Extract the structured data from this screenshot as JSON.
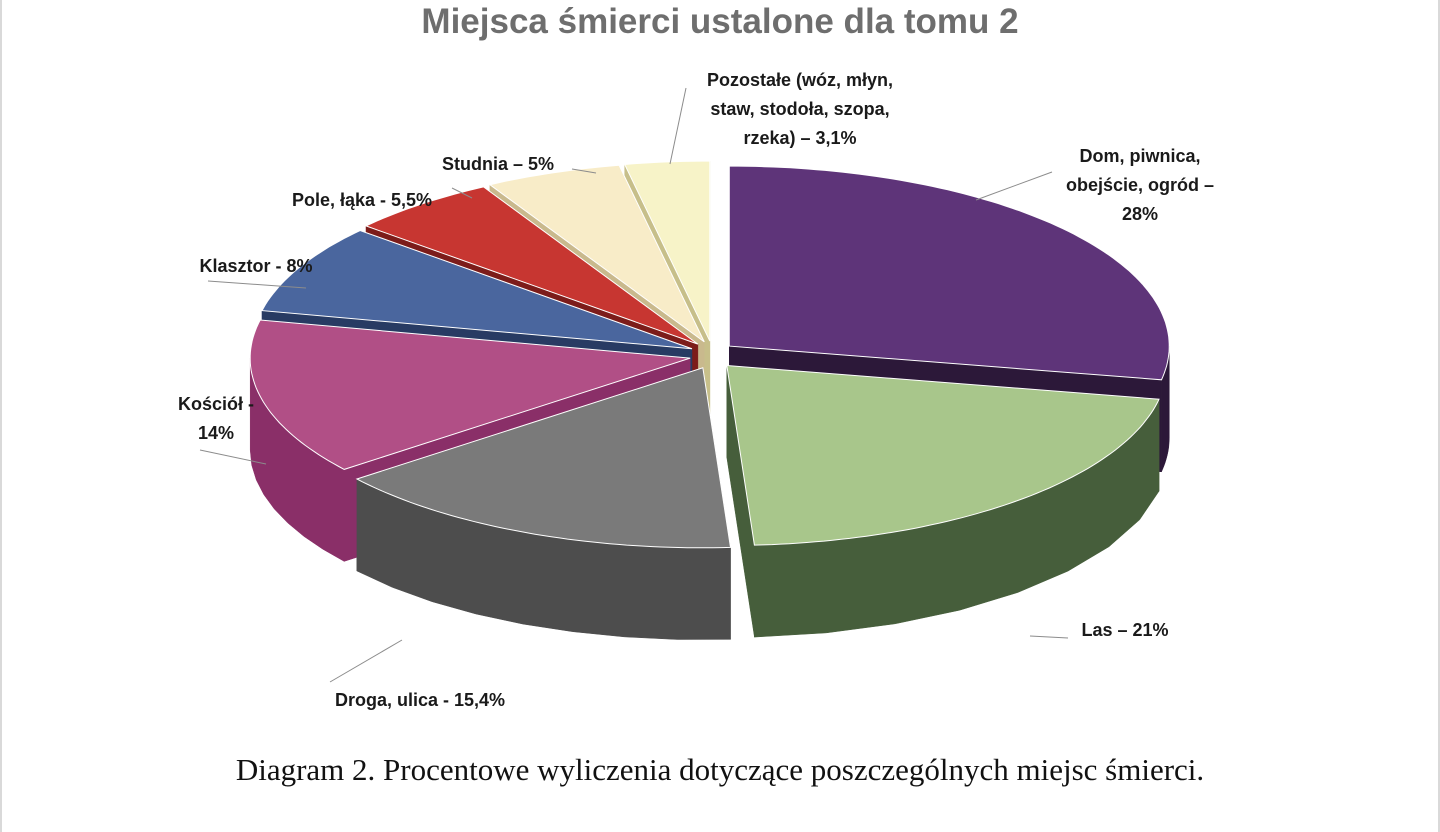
{
  "caption": "Diagram 2. Procentowe wyliczenia dotyczące poszczególnych miejsc śmierci.",
  "chart_data": {
    "type": "pie",
    "style": "3d-exploded",
    "title": "Miejsca śmierci ustalone dla tomu 2",
    "unit": "%",
    "slices": [
      {
        "name": "Dom, piwnica, obejście, ogród",
        "value": 28,
        "label_lines": [
          "Dom, piwnica,",
          "obejście, ogród –",
          "28%"
        ],
        "color": "#5e3479",
        "side_color": "#2c1839"
      },
      {
        "name": "Las",
        "value": 21,
        "label_lines": [
          "Las – 21%"
        ],
        "color": "#a8c68b",
        "side_color": "#465e3b"
      },
      {
        "name": "Droga, ulica",
        "value": 15.4,
        "label_lines": [
          "Droga, ulica - 15,4%"
        ],
        "color": "#7a7a7a",
        "side_color": "#4d4d4d"
      },
      {
        "name": "Kościół",
        "value": 14,
        "label_lines": [
          "Kościół -",
          "14%"
        ],
        "color": "#b14f86",
        "side_color": "#8a2f68"
      },
      {
        "name": "Klasztor",
        "value": 8,
        "label_lines": [
          "Klasztor - 8%"
        ],
        "color": "#4a669e",
        "side_color": "#283b63"
      },
      {
        "name": "Pole, łąka",
        "value": 5.5,
        "label_lines": [
          "Pole, łąka - 5,5%"
        ],
        "color": "#c73631",
        "side_color": "#7c1c1a"
      },
      {
        "name": "Studnia",
        "value": 5,
        "label_lines": [
          "Studnia – 5%"
        ],
        "color": "#f8ecc8",
        "side_color": "#c9b98d"
      },
      {
        "name": "Pozostałe (wóz, młyn, staw, stodoła, szopa, rzeka)",
        "value": 3.1,
        "label_lines": [
          "Pozostałe (wóz, młyn,",
          "staw, stodoła, szopa,",
          "rzeka) – 3,1%"
        ],
        "color": "#f7f3c8",
        "side_color": "#c7bf8a"
      }
    ]
  }
}
